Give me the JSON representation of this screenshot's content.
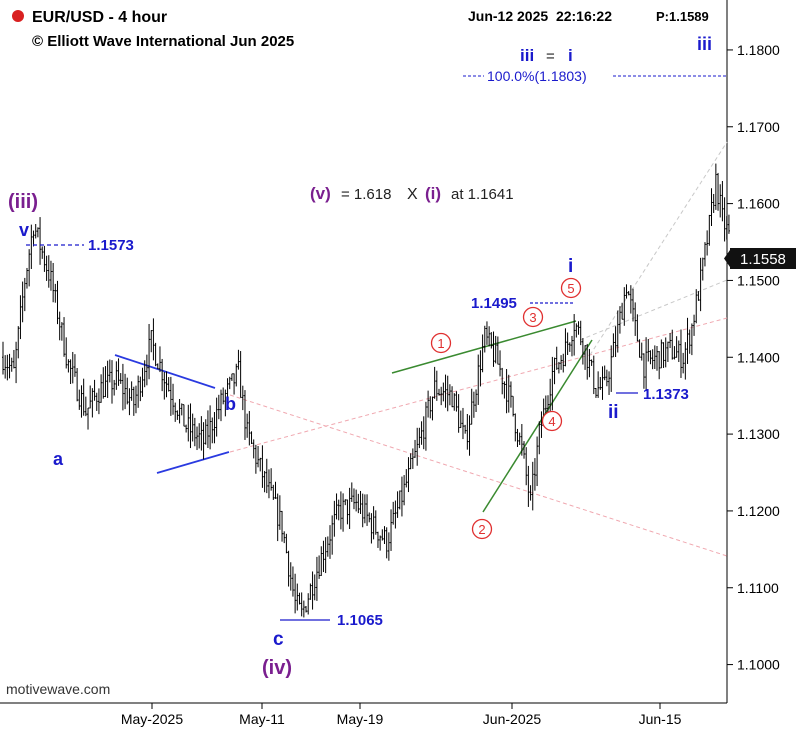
{
  "header": {
    "symbol": "EUR/USD - 4 hour",
    "copyright": "© Elliott Wave International Jun 2025",
    "datetime": "Jun-12 2025  22:16:22",
    "price_label": "P:1.1589",
    "status_dot_color": "#d92020",
    "watermark": "motivewave.com"
  },
  "colors": {
    "candle": "#000000",
    "blue_label": "#1a1acc",
    "purple_label": "#7a1f8f",
    "red_circle": "#e03030",
    "triangle": "#2a3ae0",
    "wedge": "#3a8a30",
    "pink_line": "#f0a8b0",
    "gray_line": "#c8c8c8"
  },
  "chart_data": {
    "type": "candlestick",
    "title": "EUR/USD - 4 hour",
    "ylim": [
      1.095,
      1.1865
    ],
    "y_ticks": [
      "1.1800",
      "1.1700",
      "1.1600",
      "1.1500",
      "1.1400",
      "1.1300",
      "1.1200",
      "1.1100",
      "1.1000"
    ],
    "y_tick_values": [
      1.18,
      1.17,
      1.16,
      1.15,
      1.14,
      1.13,
      1.12,
      1.11,
      1.1
    ],
    "x_ticks": [
      "May-2025",
      "May-11",
      "May-19",
      "Jun-2025",
      "Jun-15"
    ],
    "current_price_label": "1.1558",
    "current_price": 1.1558,
    "price_path_anchors": [
      [
        0,
        1.14
      ],
      [
        5,
        1.138
      ],
      [
        10,
        1.15
      ],
      [
        14,
        1.1573
      ],
      [
        22,
        1.15
      ],
      [
        30,
        1.139
      ],
      [
        38,
        1.133
      ],
      [
        45,
        1.136
      ],
      [
        52,
        1.137
      ],
      [
        60,
        1.134
      ],
      [
        68,
        1.142
      ],
      [
        76,
        1.136
      ],
      [
        84,
        1.131
      ],
      [
        92,
        1.129
      ],
      [
        100,
        1.134
      ],
      [
        108,
        1.138
      ],
      [
        112,
        1.13
      ],
      [
        120,
        1.124
      ],
      [
        128,
        1.118
      ],
      [
        134,
        1.108
      ],
      [
        137,
        1.1065
      ],
      [
        146,
        1.114
      ],
      [
        154,
        1.12
      ],
      [
        162,
        1.121
      ],
      [
        170,
        1.118
      ],
      [
        176,
        1.116
      ],
      [
        182,
        1.121
      ],
      [
        190,
        1.128
      ],
      [
        198,
        1.136
      ],
      [
        206,
        1.135
      ],
      [
        212,
        1.129
      ],
      [
        216,
        1.135
      ],
      [
        221,
        1.1425
      ],
      [
        226,
        1.14
      ],
      [
        232,
        1.135
      ],
      [
        238,
        1.128
      ],
      [
        242,
        1.121
      ],
      [
        246,
        1.13
      ],
      [
        252,
        1.138
      ],
      [
        258,
        1.141
      ],
      [
        262,
        1.1445
      ],
      [
        266,
        1.142
      ],
      [
        272,
        1.136
      ],
      [
        276,
        1.136
      ],
      [
        281,
        1.142
      ],
      [
        286,
        1.1495
      ],
      [
        290,
        1.1437
      ],
      [
        294,
        1.139
      ],
      [
        300,
        1.14
      ],
      [
        306,
        1.141
      ],
      [
        312,
        1.14
      ],
      [
        316,
        1.144
      ],
      [
        320,
        1.15
      ],
      [
        324,
        1.157
      ],
      [
        327,
        1.163
      ],
      [
        330,
        1.158
      ],
      [
        333,
        1.1558
      ]
    ]
  },
  "annotations": {
    "wave_iii_purple": "(iii)",
    "wave_v": "v",
    "level_1573": "1.1573",
    "wave_a": "a",
    "wave_b": "b",
    "wave_c": "c",
    "wave_iv_purple": "(iv)",
    "level_1065": "1.1065",
    "target_v_label": "(v)",
    "target_eq": "= 1.618",
    "target_x": "X",
    "target_i_label": "(i)",
    "target_at": "at 1.1641",
    "iii_eq_i_left": "iii",
    "iii_eq_i_eq": "=",
    "iii_eq_i_right": "i",
    "target_100": "100.0%(1.1803)",
    "wave_iii_blue": "iii",
    "wave_i_blue": "i",
    "level_1495": "1.1495",
    "wave_ii_blue": "ii",
    "level_1373": "1.1373",
    "circle_1": "1",
    "circle_2": "2",
    "circle_3": "3",
    "circle_4": "4",
    "circle_5": "5"
  }
}
